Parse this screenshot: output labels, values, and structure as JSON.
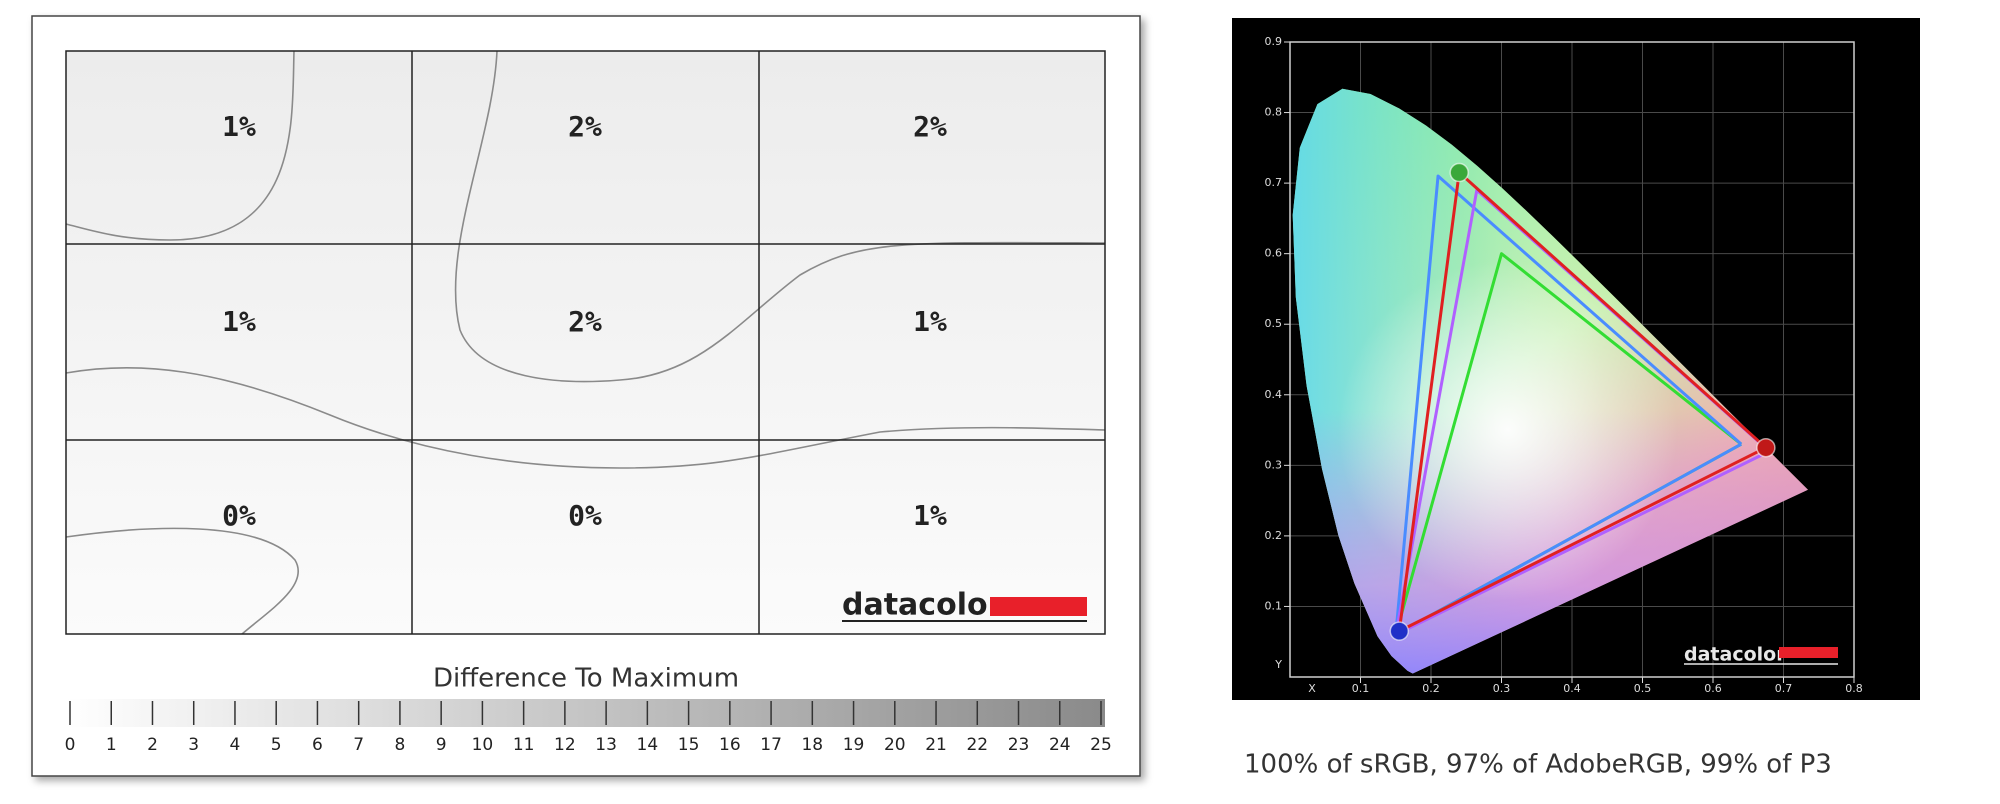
{
  "uniformity": {
    "cells": [
      [
        "1%",
        "2%",
        "2%"
      ],
      [
        "1%",
        "2%",
        "1%"
      ],
      [
        "0%",
        "0%",
        "1%"
      ]
    ],
    "scale": {
      "title": "Difference To Maximum",
      "ticks": [
        0,
        1,
        2,
        3,
        4,
        5,
        6,
        7,
        8,
        9,
        10,
        11,
        12,
        13,
        14,
        15,
        16,
        17,
        18,
        19,
        20,
        21,
        22,
        23,
        24,
        25
      ]
    }
  },
  "logo": "datacolor",
  "chart_data": {
    "type": "line",
    "xlabel": "X",
    "ylabel": "Y",
    "xlim": [
      0,
      0.8
    ],
    "ylim": [
      0,
      0.9
    ],
    "xticks": [
      0.1,
      0.2,
      0.3,
      0.4,
      0.5,
      0.6,
      0.7,
      0.8
    ],
    "yticks": [
      0.1,
      0.2,
      0.3,
      0.4,
      0.5,
      0.6,
      0.7,
      0.8,
      0.9
    ],
    "grid": true,
    "series": [
      {
        "color": "#33dd33",
        "x": [
          0.64,
          0.3,
          0.15,
          0.64
        ],
        "y": [
          0.33,
          0.6,
          0.06,
          0.33
        ]
      },
      {
        "color": "#4a8cff",
        "x": [
          0.64,
          0.21,
          0.15,
          0.64
        ],
        "y": [
          0.33,
          0.71,
          0.06,
          0.33
        ]
      },
      {
        "color": "#b060ff",
        "x": [
          0.68,
          0.265,
          0.15,
          0.68
        ],
        "y": [
          0.32,
          0.69,
          0.06,
          0.32
        ]
      },
      {
        "color": "#e02020",
        "x": [
          0.675,
          0.24,
          0.155,
          0.675
        ],
        "y": [
          0.325,
          0.715,
          0.065,
          0.325
        ],
        "marker_colors": [
          "#c01818",
          "#3aa83a",
          "#2030c8"
        ]
      }
    ]
  },
  "caption": "100% of sRGB, 97% of AdobeRGB, 99% of P3"
}
